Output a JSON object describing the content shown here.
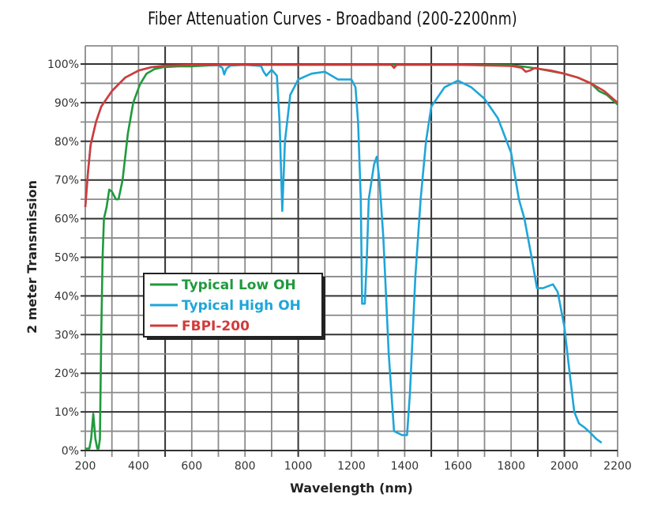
{
  "chart_data": {
    "type": "line",
    "title": "Fiber Attenuation Curves - Broadband (200-2200nm)",
    "xlabel": "Wavelength (nm)",
    "ylabel": "2 meter Transmission",
    "xlim": [
      200,
      2200
    ],
    "ylim": [
      0,
      100
    ],
    "x_ticks": [
      "200",
      "400",
      "600",
      "800",
      "1000",
      "1200",
      "1400",
      "1600",
      "1800",
      "2000",
      "2200"
    ],
    "y_ticks": [
      "0%",
      "10%",
      "20%",
      "30%",
      "40%",
      "50%",
      "60%",
      "70%",
      "80%",
      "90%",
      "100%"
    ],
    "grid": true,
    "legend_placement": "center-left",
    "series": [
      {
        "name": "Typical Low OH",
        "color": "#1f9a3c",
        "x": [
          200,
          215,
          222,
          230,
          238,
          245,
          250,
          255,
          260,
          265,
          270,
          280,
          290,
          300,
          315,
          325,
          340,
          360,
          380,
          405,
          430,
          460,
          495,
          550,
          600,
          700,
          800,
          1000,
          1200,
          1400,
          1600,
          1800,
          1850,
          1900,
          2000,
          2050,
          2100,
          2130,
          2160,
          2200
        ],
        "y": [
          0.5,
          0.5,
          3,
          9.5,
          3,
          0.5,
          0.5,
          3,
          30,
          50,
          60,
          63,
          67.5,
          67,
          65,
          65,
          70,
          82,
          90,
          94.7,
          97.5,
          98.7,
          99.2,
          99.4,
          99.4,
          99.8,
          99.8,
          99.8,
          99.8,
          99.8,
          99.8,
          99.7,
          99.3,
          98.8,
          97.5,
          96.5,
          95,
          93,
          92,
          89.5
        ]
      },
      {
        "name": "Typical High OH",
        "color": "#1ea6d9",
        "x": [
          200,
          210,
          220,
          240,
          260,
          300,
          350,
          400,
          450,
          500,
          600,
          700,
          715,
          722,
          730,
          745,
          800,
          860,
          870,
          880,
          900,
          920,
          930,
          940,
          950,
          970,
          1000,
          1050,
          1100,
          1150,
          1200,
          1215,
          1225,
          1235,
          1240,
          1250,
          1258,
          1265,
          1285,
          1295,
          1305,
          1320,
          1340,
          1360,
          1375,
          1390,
          1409,
          1420,
          1440,
          1460,
          1480,
          1500,
          1550,
          1600,
          1650,
          1700,
          1750,
          1800,
          1829,
          1850,
          1877,
          1897,
          1920,
          1957,
          1975,
          2000,
          2020,
          2037,
          2055,
          2075,
          2096,
          2120,
          2140
        ],
        "y": [
          63,
          72,
          79,
          85,
          89,
          93,
          96.5,
          98.3,
          99.2,
          99.5,
          99.6,
          99.7,
          99,
          97.3,
          98.8,
          99.6,
          99.8,
          99.5,
          98,
          97,
          98.5,
          97,
          85,
          62,
          80,
          92,
          96,
          97.5,
          98,
          96,
          96,
          94,
          85,
          65,
          38,
          38,
          50,
          65,
          74,
          76,
          70,
          55,
          25,
          5,
          4.5,
          4,
          4,
          15,
          45,
          65,
          80,
          89,
          94,
          95.7,
          94,
          91,
          86,
          77,
          65,
          60,
          50,
          42,
          42,
          43,
          41,
          32,
          20,
          10,
          7,
          6,
          4.7,
          3,
          2
        ]
      },
      {
        "name": "FBPI-200",
        "color": "#d23b3b",
        "x": [
          200,
          210,
          220,
          240,
          260,
          300,
          350,
          400,
          450,
          500,
          600,
          800,
          1000,
          1200,
          1350,
          1360,
          1370,
          1400,
          1600,
          1800,
          1840,
          1855,
          1870,
          1890,
          1900,
          1950,
          2000,
          2050,
          2100,
          2150,
          2200
        ],
        "y": [
          63,
          72,
          79,
          85,
          89,
          93,
          96.5,
          98.3,
          99.2,
          99.6,
          99.8,
          99.8,
          99.8,
          99.8,
          99.8,
          99,
          99.8,
          99.8,
          99.8,
          99.5,
          99,
          98,
          98.3,
          99,
          98.8,
          98.3,
          97.5,
          96.5,
          95,
          93,
          90
        ]
      }
    ]
  }
}
